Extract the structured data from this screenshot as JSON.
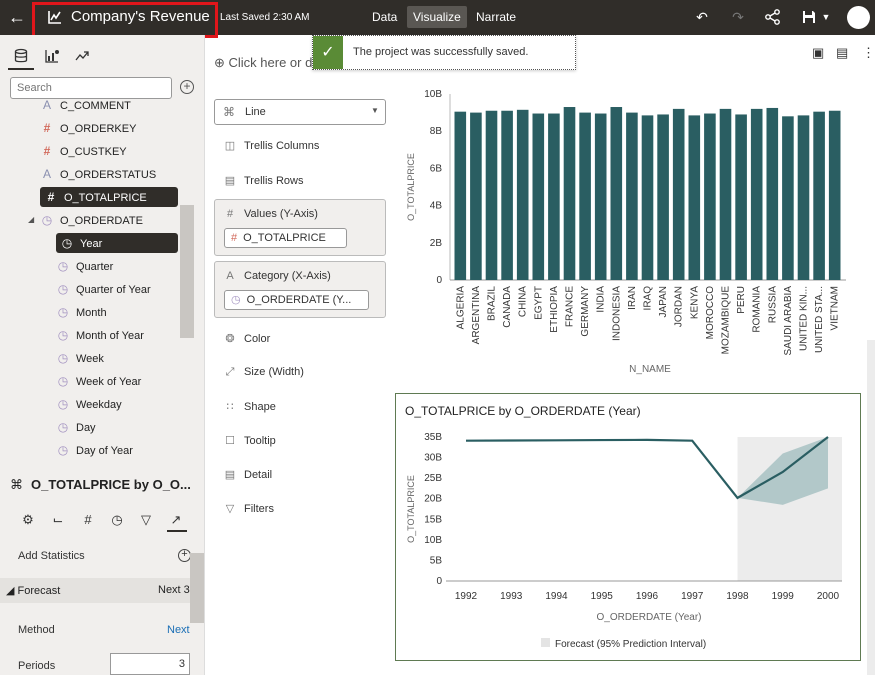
{
  "topbar": {
    "title": "Company's Revenue",
    "last_saved": "Last Saved 2:30 AM",
    "tabs": [
      "Data",
      "Visualize",
      "Narrate"
    ],
    "active_tab": "Visualize"
  },
  "toast": {
    "message": "The project was successfully saved."
  },
  "canvas": {
    "click_here": "Click here or d"
  },
  "left_panel": {
    "search_placeholder": "Search",
    "items": [
      {
        "label": "C_COMMENT",
        "icon": "text-icon"
      },
      {
        "label": "O_ORDERKEY",
        "icon": "number-icon"
      },
      {
        "label": "O_CUSTKEY",
        "icon": "number-icon"
      },
      {
        "label": "O_ORDERSTATUS",
        "icon": "text-icon"
      },
      {
        "label": "O_TOTALPRICE",
        "icon": "number-icon",
        "selected": true
      },
      {
        "label": "O_ORDERDATE",
        "icon": "clock-icon",
        "expanded": true
      },
      {
        "label": "Year",
        "icon": "clock-icon",
        "selected": true
      },
      {
        "label": "Quarter",
        "icon": "clock-icon"
      },
      {
        "label": "Quarter of Year",
        "icon": "clock-icon"
      },
      {
        "label": "Month",
        "icon": "clock-icon"
      },
      {
        "label": "Month of Year",
        "icon": "clock-icon"
      },
      {
        "label": "Week",
        "icon": "clock-icon"
      },
      {
        "label": "Week of Year",
        "icon": "clock-icon"
      },
      {
        "label": "Weekday",
        "icon": "clock-icon"
      },
      {
        "label": "Day",
        "icon": "clock-icon"
      },
      {
        "label": "Day of Year",
        "icon": "clock-icon"
      }
    ],
    "properties_title": "O_TOTALPRICE by O_O...",
    "add_statistics": "Add Statistics",
    "forecast_label": "Forecast",
    "forecast_value": "Next 3",
    "method_label": "Method",
    "method_value": "Next",
    "periods_label": "Periods",
    "periods_value": "3"
  },
  "grammar": {
    "chart_type": "Line",
    "trellis_columns": "Trellis Columns",
    "trellis_rows": "Trellis Rows",
    "values_label": "Values (Y-Axis)",
    "values_pill": "O_TOTALPRICE",
    "category_label": "Category (X-Axis)",
    "category_pill": "O_ORDERDATE (Y...",
    "color": "Color",
    "size": "Size (Width)",
    "shape": "Shape",
    "tooltip": "Tooltip",
    "detail": "Detail",
    "filters": "Filters"
  },
  "colors": {
    "bar": "#2a5e62",
    "line": "#2a5e62",
    "forecast_band": "#9fbcbe",
    "forecast_bg": "#ececec",
    "accent_green": "#5a8b36"
  },
  "chart_data": [
    {
      "type": "bar",
      "categories": [
        "ALGERIA",
        "ARGENTINA",
        "BRAZIL",
        "CANADA",
        "CHINA",
        "EGYPT",
        "ETHIOPIA",
        "FRANCE",
        "GERMANY",
        "INDIA",
        "INDONESIA",
        "IRAN",
        "IRAQ",
        "JAPAN",
        "JORDAN",
        "KENYA",
        "MOROCCO",
        "MOZAMBIQUE",
        "PERU",
        "ROMANIA",
        "RUSSIA",
        "SAUDI ARABIA",
        "UNITED KIN...",
        "UNITED STA...",
        "VIETNAM"
      ],
      "values": [
        9.05,
        9.0,
        9.1,
        9.1,
        9.15,
        8.95,
        8.95,
        9.3,
        9.0,
        8.95,
        9.3,
        9.0,
        8.85,
        8.9,
        9.2,
        8.85,
        8.95,
        9.2,
        8.9,
        9.2,
        9.25,
        8.8,
        8.85,
        9.05,
        9.1
      ],
      "xlabel": "N_NAME",
      "ylabel": "O_TOTALPRICE",
      "yticks": [
        "0",
        "2B",
        "4B",
        "6B",
        "8B",
        "10B"
      ],
      "ylim": [
        0,
        10
      ]
    },
    {
      "type": "line",
      "title": "O_TOTALPRICE by O_ORDERDATE (Year)",
      "x": [
        "1992",
        "1993",
        "1994",
        "1995",
        "1996",
        "1997",
        "1998",
        "1999",
        "2000"
      ],
      "values": [
        34.1,
        34.15,
        34.2,
        34.25,
        34.3,
        34.1,
        20.2,
        26.5,
        35.5
      ],
      "forecast_start": "1998",
      "forecast_band_upper": [
        null,
        null,
        null,
        null,
        null,
        null,
        20.2,
        31.0,
        37.0
      ],
      "forecast_band_lower": [
        null,
        null,
        null,
        null,
        null,
        null,
        20.2,
        18.5,
        22.5
      ],
      "xlabel": "O_ORDERDATE (Year)",
      "ylabel": "O_TOTALPRICE",
      "yticks": [
        "0",
        "5B",
        "10B",
        "15B",
        "20B",
        "25B",
        "30B",
        "35B"
      ],
      "ylim": [
        0,
        35
      ],
      "legend": "Forecast (95% Prediction Interval)"
    }
  ]
}
